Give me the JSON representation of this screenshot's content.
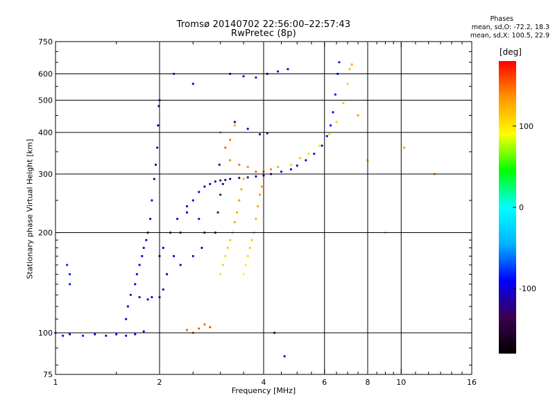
{
  "colors": {
    "grid": "#000000",
    "background": "#ffffff",
    "colorbar_stops": [
      "#000000",
      "#3c0050",
      "#0000ff",
      "#00b4ff",
      "#00ffff",
      "#00ff00",
      "#ffff00",
      "#ff9600",
      "#ff0000"
    ]
  },
  "chart_data": {
    "type": "scatter",
    "title": "Tromsø 20140702 22:56:00–22:57:43",
    "subtitle": "RwPretec (8p)",
    "xlabel": "Frequency [MHz]",
    "ylabel": "Stationary phase Virtual Height [km]",
    "xscale": "log",
    "yscale": "log",
    "xlim": [
      1,
      16
    ],
    "ylim": [
      75,
      750
    ],
    "xticks": [
      1,
      2,
      4,
      6,
      8,
      10,
      16
    ],
    "yticks": [
      75,
      100,
      200,
      300,
      400,
      500,
      600,
      750
    ],
    "grid": true,
    "stats": {
      "heading": "Phases",
      "line_o": "mean, sd,O: -72.2, 18.3",
      "line_x": "mean, sd,X: 100.5, 22.9"
    },
    "colorbar": {
      "unit": "[deg]",
      "range": [
        -180,
        180
      ],
      "ticks": [
        {
          "value": 100,
          "label": "100"
        },
        {
          "value": 0,
          "label": "0"
        },
        {
          "value": -100,
          "label": "-100"
        }
      ]
    },
    "series": [
      {
        "values": [
          [
            1.0,
            100,
            -95
          ],
          [
            1.05,
            98,
            -88
          ],
          [
            1.1,
            99,
            -92
          ],
          [
            1.2,
            98,
            -85
          ],
          [
            1.3,
            99,
            -90
          ],
          [
            1.4,
            98,
            -88
          ],
          [
            1.5,
            99,
            -92
          ],
          [
            1.6,
            98,
            -90
          ],
          [
            1.7,
            99,
            -86
          ],
          [
            1.8,
            101,
            -92
          ],
          [
            1.08,
            160,
            -80
          ],
          [
            1.1,
            150,
            -85
          ],
          [
            1.1,
            140,
            -82
          ],
          [
            1.6,
            110,
            -100
          ],
          [
            1.62,
            120,
            -105
          ],
          [
            1.65,
            130,
            -110
          ],
          [
            1.7,
            140,
            -100
          ],
          [
            1.72,
            150,
            -95
          ],
          [
            1.75,
            160,
            -98
          ],
          [
            1.78,
            170,
            -92
          ],
          [
            1.8,
            180,
            -95
          ],
          [
            1.83,
            190,
            -100
          ],
          [
            1.85,
            200,
            -92
          ],
          [
            1.88,
            220,
            -105
          ],
          [
            1.9,
            250,
            -110
          ],
          [
            1.93,
            290,
            -115
          ],
          [
            1.95,
            320,
            -120
          ],
          [
            1.97,
            360,
            -115
          ],
          [
            1.98,
            420,
            -120
          ],
          [
            1.99,
            480,
            -118
          ],
          [
            1.75,
            128,
            -100
          ],
          [
            1.85,
            126,
            -105
          ],
          [
            1.9,
            128,
            -102
          ],
          [
            2.0,
            128,
            -108
          ],
          [
            2.05,
            135,
            -110
          ],
          [
            2.1,
            150,
            -115
          ],
          [
            2.2,
            170,
            -100
          ],
          [
            2.3,
            200,
            -95
          ],
          [
            2.4,
            230,
            -100
          ],
          [
            2.5,
            250,
            -105
          ],
          [
            2.6,
            265,
            -110
          ],
          [
            2.7,
            275,
            -108
          ],
          [
            2.8,
            280,
            -115
          ],
          [
            2.9,
            285,
            -118
          ],
          [
            3.0,
            287,
            -120
          ],
          [
            3.1,
            288,
            -122
          ],
          [
            3.2,
            290,
            -118
          ],
          [
            3.4,
            292,
            -115
          ],
          [
            3.6,
            293,
            -112
          ],
          [
            3.8,
            295,
            -110
          ],
          [
            4.0,
            297,
            -112
          ],
          [
            4.2,
            300,
            -108
          ],
          [
            4.5,
            305,
            -105
          ],
          [
            4.8,
            310,
            -100
          ],
          [
            5.0,
            318,
            -104
          ],
          [
            5.3,
            330,
            -100
          ],
          [
            5.6,
            345,
            -98
          ],
          [
            5.9,
            365,
            -102
          ],
          [
            6.1,
            390,
            -100
          ],
          [
            6.25,
            420,
            -98
          ],
          [
            6.35,
            460,
            -100
          ],
          [
            6.45,
            520,
            -96
          ],
          [
            6.55,
            600,
            -98
          ],
          [
            6.62,
            650,
            -95
          ],
          [
            2.05,
            180,
            -100
          ],
          [
            2.15,
            200,
            -98
          ],
          [
            2.25,
            220,
            -96
          ],
          [
            2.4,
            240,
            -100
          ],
          [
            2.6,
            220,
            -102
          ],
          [
            2.7,
            200,
            -98
          ],
          [
            2.65,
            180,
            -104
          ],
          [
            2.5,
            170,
            -100
          ],
          [
            2.3,
            160,
            -110
          ],
          [
            2.0,
            170,
            -115
          ],
          [
            2.9,
            200,
            -130
          ],
          [
            2.95,
            230,
            -125
          ],
          [
            3.0,
            260,
            -128
          ],
          [
            3.05,
            280,
            -120
          ],
          [
            2.98,
            320,
            -115
          ],
          [
            3.3,
            430,
            -112
          ],
          [
            3.6,
            410,
            -100
          ],
          [
            3.9,
            395,
            -110
          ],
          [
            4.1,
            398,
            -105
          ],
          [
            3.2,
            600,
            -95
          ],
          [
            3.5,
            590,
            -100
          ],
          [
            3.8,
            585,
            -102
          ],
          [
            4.1,
            600,
            -100
          ],
          [
            4.4,
            610,
            -96
          ],
          [
            4.7,
            620,
            -98
          ],
          [
            2.2,
            600,
            -80
          ],
          [
            2.5,
            560,
            -90
          ],
          [
            2.0,
            500,
            -100
          ],
          [
            4.3,
            100,
            -110
          ],
          [
            4.6,
            85,
            -100
          ]
        ]
      },
      {
        "values": [
          [
            2.4,
            102,
            150
          ],
          [
            2.5,
            100,
            160
          ],
          [
            2.6,
            103,
            155
          ],
          [
            2.7,
            106,
            150
          ],
          [
            2.8,
            104,
            160
          ],
          [
            3.0,
            150,
            100
          ],
          [
            3.05,
            160,
            110
          ],
          [
            3.1,
            170,
            105
          ],
          [
            3.15,
            180,
            112
          ],
          [
            3.2,
            190,
            115
          ],
          [
            3.25,
            200,
            120
          ],
          [
            3.3,
            215,
            125
          ],
          [
            3.35,
            230,
            130
          ],
          [
            3.4,
            250,
            135
          ],
          [
            3.45,
            270,
            130
          ],
          [
            3.5,
            290,
            125
          ],
          [
            3.5,
            150,
            95
          ],
          [
            3.55,
            160,
            100
          ],
          [
            3.6,
            170,
            105
          ],
          [
            3.65,
            180,
            110
          ],
          [
            3.7,
            190,
            115
          ],
          [
            3.75,
            200,
            120
          ],
          [
            3.8,
            220,
            125
          ],
          [
            3.85,
            240,
            130
          ],
          [
            3.9,
            260,
            135
          ],
          [
            3.95,
            275,
            130
          ],
          [
            3.2,
            330,
            140
          ],
          [
            3.4,
            320,
            145
          ],
          [
            3.6,
            315,
            140
          ],
          [
            3.8,
            305,
            150
          ],
          [
            4.0,
            305,
            145
          ],
          [
            4.2,
            310,
            140
          ],
          [
            4.4,
            315,
            130
          ],
          [
            4.8,
            320,
            110
          ],
          [
            5.1,
            335,
            115
          ],
          [
            5.4,
            345,
            105
          ],
          [
            5.8,
            365,
            100
          ],
          [
            6.2,
            395,
            105
          ],
          [
            6.5,
            430,
            110
          ],
          [
            6.8,
            490,
            115
          ],
          [
            7.0,
            560,
            110
          ],
          [
            7.1,
            620,
            120
          ],
          [
            7.2,
            640,
            130
          ],
          [
            3.0,
            400,
            140
          ],
          [
            3.1,
            360,
            150
          ],
          [
            3.2,
            380,
            145
          ],
          [
            3.3,
            420,
            130
          ],
          [
            7.5,
            450,
            135
          ],
          [
            8.0,
            330,
            120
          ],
          [
            9.0,
            200,
            110
          ],
          [
            10.2,
            360,
            130
          ],
          [
            12.5,
            300,
            140
          ]
        ]
      }
    ]
  }
}
